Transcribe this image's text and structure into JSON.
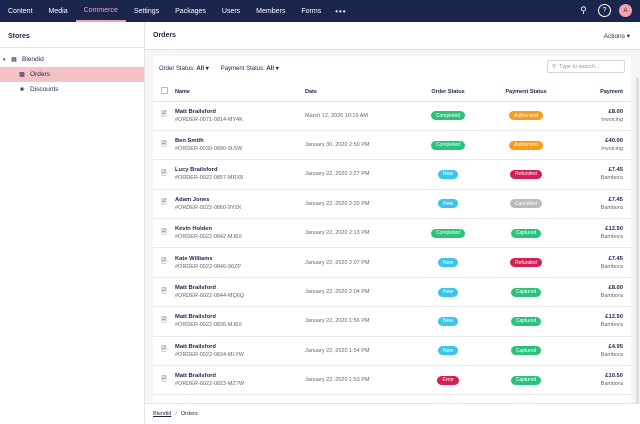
{
  "nav": [
    "Content",
    "Media",
    "Commerce",
    "Settings",
    "Packages",
    "Users",
    "Members",
    "Forms"
  ],
  "nav_active": "Commerce",
  "avatar": "A",
  "sidebar": {
    "title": "Stores",
    "store": "Blendid",
    "items": [
      "Orders",
      "Discounts"
    ]
  },
  "main": {
    "title": "Orders",
    "actions": "Actions ▾"
  },
  "filters": {
    "order_label": "Order Status:",
    "order_val": "All ▾",
    "pay_label": "Payment Status:",
    "pay_val": "All ▾",
    "search_placeholder": "Type to search..."
  },
  "columns": [
    "Name",
    "Date",
    "Order Status",
    "Payment Status",
    "Payment"
  ],
  "rows": [
    {
      "name": "Matt Brailsford",
      "ord": "#ORDER-0071-0814-MY4K",
      "date": "March 12, 2020 10:19 AM",
      "os": "Completed",
      "osc": "green",
      "ps": "Authorized",
      "psc": "orange",
      "amt": "£8.00",
      "pm": "Invoicing"
    },
    {
      "name": "Ben Smith",
      "ord": "#ORDER-0030-0890-9L5W",
      "date": "January 30, 2020 2:50 PM",
      "os": "Completed",
      "osc": "green",
      "ps": "Authorized",
      "psc": "orange",
      "amt": "£40.00",
      "pm": "Invoicing"
    },
    {
      "name": "Lucy Brailsford",
      "ord": "#ORDER-0022-0857-MRX8",
      "date": "January 22, 2020 2:27 PM",
      "os": "New",
      "osc": "blue",
      "ps": "Refunded",
      "psc": "red",
      "amt": "£7.45",
      "pm": "Bambora"
    },
    {
      "name": "Adam Jones",
      "ord": "#ORDER-0022-0860-9YZK",
      "date": "January 22, 2020 2:20 PM",
      "os": "New",
      "osc": "blue",
      "ps": "Cancelled",
      "psc": "grey",
      "amt": "£7.45",
      "pm": "Bambora"
    },
    {
      "name": "Kevin Holden",
      "ord": "#ORDER-0022-0842-MJ6X",
      "date": "January 22, 2020 2:13 PM",
      "os": "Completed",
      "osc": "green",
      "ps": "Captured",
      "psc": "green",
      "amt": "£12.50",
      "pm": "Bambora"
    },
    {
      "name": "Kate Williams",
      "ord": "#ORDER-0022-0846-96ZP",
      "date": "January 22, 2020 2:07 PM",
      "os": "New",
      "osc": "blue",
      "ps": "Refunded",
      "psc": "red",
      "amt": "£7.45",
      "pm": "Bambora"
    },
    {
      "name": "Matt Brailsford",
      "ord": "#ORDER-0022-0844-MQ6Q",
      "date": "January 22, 2020 2:04 PM",
      "os": "New",
      "osc": "blue",
      "ps": "Captured",
      "psc": "green",
      "amt": "£8.00",
      "pm": "Bambora"
    },
    {
      "name": "Matt Brailsford",
      "ord": "#ORDER-0022-0836-MJ6X",
      "date": "January 22, 2020 1:56 PM",
      "os": "New",
      "osc": "blue",
      "ps": "Captured",
      "psc": "green",
      "amt": "£12.50",
      "pm": "Bambora"
    },
    {
      "name": "Matt Brailsford",
      "ord": "#ORDER-0022-0834-MLYW",
      "date": "January 22, 2020 1:54 PM",
      "os": "New",
      "osc": "blue",
      "ps": "Captured",
      "psc": "green",
      "amt": "£4.95",
      "pm": "Bambora"
    },
    {
      "name": "Matt Brailsford",
      "ord": "#ORDER-0022-0823-MZ7W",
      "date": "January 22, 2020 1:53 PM",
      "os": "Error",
      "osc": "red",
      "ps": "Captured",
      "psc": "green",
      "amt": "£10.50",
      "pm": "Bambora"
    }
  ],
  "breadcrumb": {
    "root": "Blendid",
    "sep": "/",
    "current": "Orders"
  }
}
